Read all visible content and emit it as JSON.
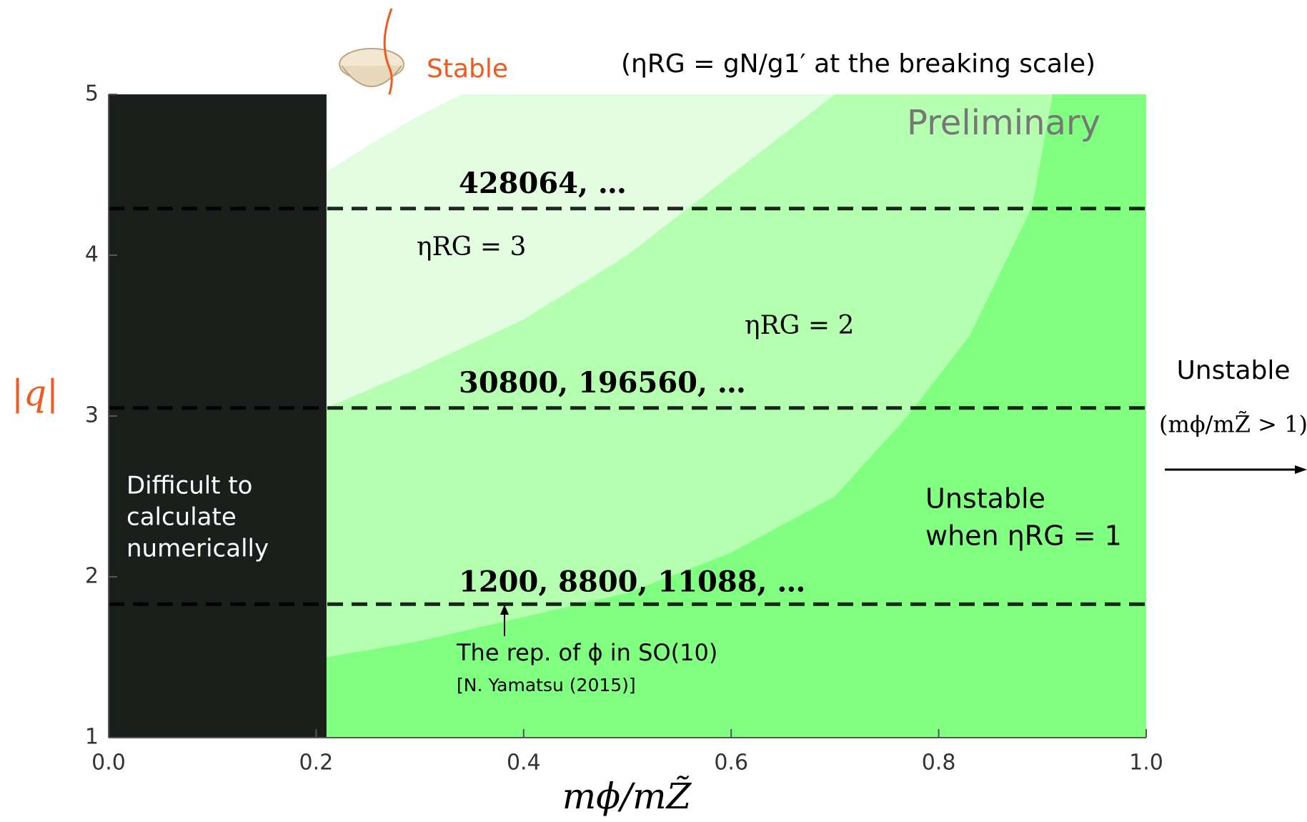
{
  "chart_data": {
    "type": "region",
    "title": "(ηRG = gN/g1′ at the breaking scale)",
    "watermark": "Preliminary",
    "stable_label": "Stable",
    "xlabel": "mϕ/mZ̃",
    "ylabel": "|q|",
    "xlim": [
      0,
      1
    ],
    "ylim": [
      1,
      5
    ],
    "xticks": [
      {
        "value": 0,
        "label": "0.0"
      },
      {
        "value": 0.2,
        "label": "0.2"
      },
      {
        "value": 0.4,
        "label": "0.4"
      },
      {
        "value": 0.6,
        "label": "0.6"
      },
      {
        "value": 0.8,
        "label": "0.8"
      },
      {
        "value": 1,
        "label": "1.0"
      }
    ],
    "yticks": [
      1,
      2,
      3,
      4,
      5
    ],
    "base_color": "#80ff80",
    "excluded_region": {
      "xlim": [
        0,
        0.21
      ],
      "color": "#1b1f1b",
      "label": [
        "Difficult to",
        "calculate",
        "numerically"
      ]
    },
    "boundaries": [
      {
        "x": [
          0.21,
          0.3,
          0.4,
          0.5,
          0.6,
          0.7,
          0.77,
          0.83,
          0.89,
          0.91
        ],
        "y": [
          1.5,
          1.6,
          1.75,
          1.9,
          2.15,
          2.5,
          3.0,
          3.5,
          4.3,
          5
        ],
        "color": "#b4ffb0"
      },
      {
        "x": [
          0.21,
          0.3,
          0.4,
          0.5,
          0.6,
          0.7
        ],
        "y": [
          3.05,
          3.3,
          3.6,
          4.0,
          4.5,
          5
        ],
        "color": "#e2fde0"
      },
      {
        "x": [
          0.21,
          0.26,
          0.3,
          0.34
        ],
        "y": [
          4.52,
          4.72,
          4.87,
          5
        ],
        "color": "#ffffff"
      }
    ],
    "region_labels": [
      "ηRG = 3",
      "ηRG = 2"
    ],
    "unstable_label": [
      "Unstable",
      "when ηRG = 1"
    ],
    "reference_lines": [
      {
        "y": 4.29,
        "label": "428064, …"
      },
      {
        "y": 3.05,
        "label": "30800, 196560, …"
      },
      {
        "y": 1.83,
        "label": "1200, 8800, 11088, …"
      }
    ],
    "note": [
      "The rep. of ϕ in SO(10)",
      "[N. Yamatsu (2015)]"
    ],
    "right_label": [
      "Unstable",
      "(mϕ/mZ̃ > 1)"
    ]
  }
}
